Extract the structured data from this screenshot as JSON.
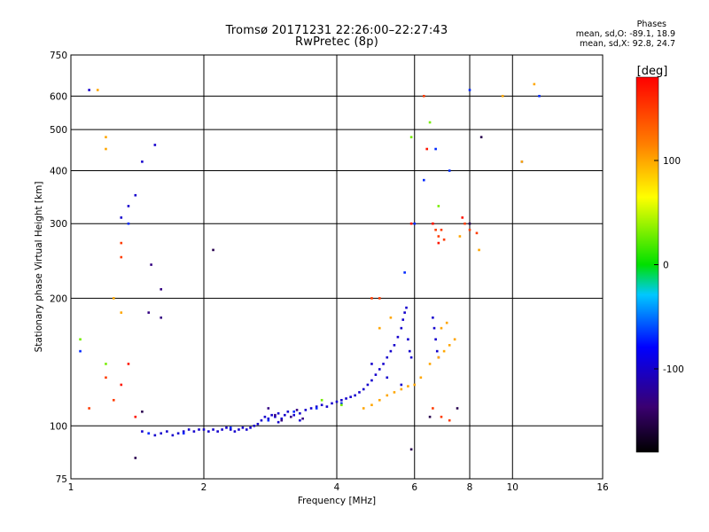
{
  "chart_data": {
    "type": "scatter",
    "title": "Tromsø 20171231 22:26:00–22:27:43",
    "subtitle": "RwPretec (8p)",
    "xlabel": "Frequency [MHz]",
    "ylabel": "Stationary phase Virtual Height [km]",
    "x_scale": "log",
    "y_scale": "log",
    "xlim": [
      1,
      16
    ],
    "ylim": [
      75,
      750
    ],
    "x_ticks": [
      1,
      2,
      4,
      6,
      8,
      10,
      16
    ],
    "y_ticks": [
      75,
      100,
      200,
      300,
      400,
      500,
      600,
      750
    ],
    "grid": true,
    "colorbar": {
      "label": "[deg]",
      "range": [
        -180,
        180
      ],
      "ticks": [
        100,
        0,
        -100
      ]
    },
    "phase_stats": {
      "header": "Phases",
      "o_line": "mean, sd,O: -89.1, 18.9",
      "x_line": "mean, sd,X:  92.8, 24.7"
    },
    "series": [
      {
        "phase_deg": -100,
        "points": [
          [
            1.45,
            97
          ],
          [
            1.5,
            96
          ],
          [
            1.55,
            95
          ],
          [
            1.6,
            96
          ],
          [
            1.65,
            97
          ],
          [
            1.7,
            95
          ],
          [
            1.75,
            96
          ],
          [
            1.8,
            97
          ],
          [
            1.85,
            98
          ],
          [
            1.9,
            97
          ],
          [
            1.95,
            98
          ],
          [
            2.0,
            98
          ],
          [
            2.05,
            97
          ],
          [
            2.1,
            98
          ],
          [
            2.15,
            97
          ],
          [
            2.2,
            98
          ],
          [
            2.25,
            99
          ],
          [
            2.3,
            98
          ],
          [
            2.35,
            97
          ],
          [
            2.4,
            98
          ],
          [
            2.45,
            99
          ],
          [
            2.5,
            98
          ],
          [
            2.55,
            99
          ],
          [
            2.6,
            100
          ],
          [
            2.65,
            101
          ],
          [
            2.7,
            103
          ],
          [
            2.75,
            105
          ],
          [
            2.8,
            104
          ],
          [
            2.85,
            106
          ],
          [
            2.9,
            105
          ],
          [
            2.95,
            107
          ],
          [
            3.0,
            104
          ],
          [
            3.05,
            106
          ],
          [
            3.1,
            108
          ],
          [
            3.2,
            106
          ],
          [
            3.3,
            107
          ],
          [
            3.4,
            109
          ],
          [
            3.5,
            110
          ],
          [
            3.6,
            111
          ],
          [
            3.7,
            112
          ],
          [
            3.8,
            111
          ],
          [
            3.9,
            113
          ],
          [
            4.0,
            114
          ],
          [
            4.1,
            115
          ],
          [
            4.2,
            116
          ],
          [
            4.3,
            117
          ],
          [
            4.4,
            118
          ],
          [
            4.5,
            120
          ],
          [
            4.6,
            122
          ],
          [
            4.7,
            125
          ],
          [
            4.8,
            128
          ],
          [
            4.9,
            132
          ],
          [
            5.0,
            136
          ],
          [
            5.1,
            140
          ],
          [
            5.2,
            145
          ],
          [
            5.3,
            150
          ],
          [
            5.4,
            155
          ],
          [
            5.5,
            162
          ],
          [
            5.6,
            170
          ],
          [
            5.65,
            178
          ],
          [
            5.7,
            185
          ],
          [
            5.75,
            190
          ],
          [
            5.8,
            160
          ],
          [
            5.85,
            150
          ],
          [
            5.9,
            145
          ],
          [
            6.6,
            180
          ],
          [
            6.65,
            170
          ],
          [
            6.7,
            160
          ],
          [
            6.75,
            150
          ],
          [
            6.8,
            145
          ],
          [
            4.8,
            140
          ],
          [
            5.2,
            130
          ],
          [
            5.6,
            125
          ],
          [
            1.1,
            620
          ],
          [
            1.4,
            350
          ],
          [
            1.45,
            420
          ],
          [
            1.35,
            330
          ],
          [
            1.3,
            310
          ],
          [
            1.55,
            460
          ],
          [
            2.95,
            102
          ],
          [
            3.3,
            103
          ]
        ]
      },
      {
        "phase_deg": -130,
        "points": [
          [
            2.8,
            110
          ],
          [
            2.9,
            106
          ],
          [
            3.0,
            103
          ],
          [
            3.15,
            105
          ],
          [
            3.25,
            109
          ],
          [
            3.35,
            104
          ],
          [
            1.52,
            240
          ],
          [
            1.6,
            210
          ],
          [
            1.5,
            185
          ],
          [
            1.6,
            180
          ]
        ]
      },
      {
        "phase_deg": -70,
        "points": [
          [
            1.5,
            96
          ],
          [
            1.8,
            96
          ],
          [
            2.3,
            99
          ],
          [
            2.8,
            103
          ],
          [
            3.2,
            108
          ],
          [
            3.6,
            110
          ],
          [
            4.1,
            113
          ],
          [
            5.7,
            230
          ],
          [
            6.0,
            300
          ],
          [
            6.3,
            380
          ],
          [
            6.7,
            450
          ],
          [
            7.2,
            400
          ],
          [
            8.0,
            620
          ],
          [
            10.5,
            420
          ],
          [
            11.5,
            600
          ],
          [
            1.05,
            150
          ],
          [
            1.35,
            300
          ]
        ]
      },
      {
        "phase_deg": 100,
        "points": [
          [
            4.6,
            110
          ],
          [
            4.8,
            112
          ],
          [
            5.0,
            115
          ],
          [
            5.2,
            118
          ],
          [
            5.4,
            120
          ],
          [
            5.6,
            122
          ],
          [
            5.8,
            124
          ],
          [
            6.0,
            125
          ],
          [
            6.2,
            130
          ],
          [
            6.5,
            140
          ],
          [
            6.8,
            145
          ],
          [
            7.0,
            150
          ],
          [
            7.2,
            155
          ],
          [
            7.4,
            160
          ],
          [
            6.9,
            170
          ],
          [
            7.1,
            175
          ],
          [
            5.3,
            180
          ],
          [
            5.0,
            170
          ],
          [
            1.15,
            620
          ],
          [
            1.2,
            480
          ],
          [
            1.2,
            450
          ],
          [
            1.25,
            200
          ],
          [
            1.3,
            185
          ],
          [
            7.6,
            280
          ],
          [
            8.4,
            260
          ],
          [
            9.5,
            600
          ],
          [
            10.5,
            420
          ],
          [
            11.2,
            640
          ]
        ]
      },
      {
        "phase_deg": 150,
        "points": [
          [
            1.1,
            110
          ],
          [
            1.2,
            130
          ],
          [
            1.25,
            115
          ],
          [
            1.3,
            270
          ],
          [
            1.3,
            250
          ],
          [
            4.8,
            200
          ],
          [
            5.0,
            200
          ],
          [
            6.6,
            300
          ],
          [
            6.7,
            290
          ],
          [
            6.8,
            280
          ],
          [
            6.9,
            290
          ],
          [
            7.0,
            275
          ],
          [
            7.8,
            300
          ],
          [
            8.0,
            290
          ],
          [
            8.3,
            285
          ],
          [
            6.6,
            110
          ],
          [
            6.9,
            105
          ],
          [
            7.2,
            103
          ],
          [
            6.3,
            600
          ]
        ]
      },
      {
        "phase_deg": 30,
        "points": [
          [
            1.05,
            160
          ],
          [
            1.2,
            140
          ],
          [
            5.9,
            480
          ],
          [
            6.5,
            520
          ],
          [
            6.8,
            330
          ],
          [
            3.7,
            115
          ],
          [
            4.1,
            112
          ]
        ]
      },
      {
        "phase_deg": -150,
        "points": [
          [
            1.45,
            108
          ],
          [
            1.4,
            84
          ],
          [
            2.1,
            260
          ],
          [
            6.5,
            105
          ],
          [
            5.9,
            88
          ],
          [
            7.5,
            110
          ],
          [
            8.0,
            300
          ],
          [
            8.5,
            480
          ]
        ]
      },
      {
        "phase_deg": 170,
        "points": [
          [
            1.3,
            125
          ],
          [
            1.35,
            140
          ],
          [
            1.4,
            105
          ],
          [
            6.6,
            300
          ],
          [
            6.8,
            270
          ],
          [
            5.9,
            300
          ],
          [
            7.7,
            310
          ],
          [
            6.4,
            450
          ]
        ]
      }
    ]
  }
}
